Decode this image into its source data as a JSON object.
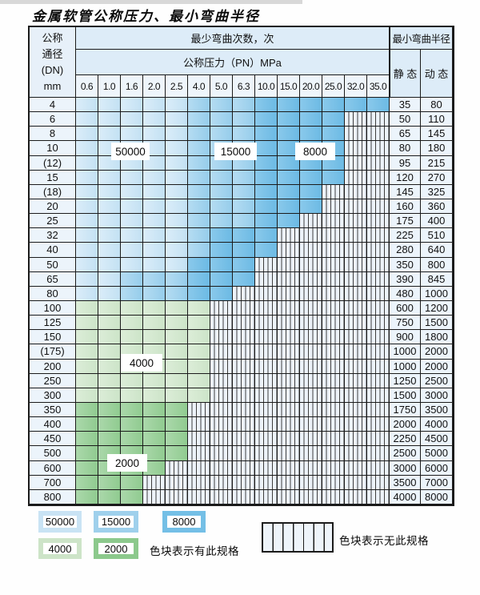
{
  "page": {
    "title": "金属软管公称压力、最小弯曲半径"
  },
  "table": {
    "dn_header_lines": [
      "公称",
      "通径",
      "(DN)",
      "mm"
    ],
    "bend_header": "最少弯曲次数，次",
    "pn_header": "公称压力（PN）MPa",
    "radius_header": "最小弯曲半径",
    "static_header": "静 态",
    "dynamic_header": "动 态",
    "pressure_columns": [
      "0.6",
      "1.0",
      "1.6",
      "2.0",
      "2.5",
      "4.0",
      "5.0",
      "6.3",
      "10.0",
      "15.0",
      "20.0",
      "25.0",
      "32.0",
      "35.0"
    ],
    "zone_codes": {
      "50": "50000 次",
      "15": "15000 次",
      "8": "8000 次",
      "4": "4000 次",
      "2": "2000 次",
      "x": "无此规格"
    },
    "rows": [
      {
        "dn": "4",
        "cells": [
          "50",
          "50",
          "50",
          "50",
          "50",
          "15",
          "15",
          "15",
          "8",
          "8",
          "8",
          "8",
          "8",
          "8"
        ],
        "static": "35",
        "dynamic": "80"
      },
      {
        "dn": "6",
        "cells": [
          "50",
          "50",
          "50",
          "50",
          "50",
          "15",
          "15",
          "15",
          "8",
          "8",
          "8",
          "8",
          "x",
          "x"
        ],
        "static": "50",
        "dynamic": "110"
      },
      {
        "dn": "8",
        "cells": [
          "50",
          "50",
          "50",
          "50",
          "50",
          "15",
          "15",
          "15",
          "8",
          "8",
          "8",
          "8",
          "x",
          "x"
        ],
        "static": "65",
        "dynamic": "145"
      },
      {
        "dn": "10",
        "cells": [
          "50",
          "50",
          "50",
          "50",
          "50",
          "15",
          "15",
          "15",
          "8",
          "8",
          "8",
          "8",
          "x",
          "x"
        ],
        "static": "80",
        "dynamic": "180"
      },
      {
        "dn": "(12)",
        "cells": [
          "50",
          "50",
          "50",
          "50",
          "50",
          "15",
          "15",
          "15",
          "8",
          "8",
          "8",
          "8",
          "x",
          "x"
        ],
        "static": "95",
        "dynamic": "215"
      },
      {
        "dn": "15",
        "cells": [
          "50",
          "50",
          "50",
          "50",
          "50",
          "15",
          "15",
          "15",
          "8",
          "8",
          "8",
          "8",
          "x",
          "x"
        ],
        "static": "120",
        "dynamic": "270"
      },
      {
        "dn": "(18)",
        "cells": [
          "50",
          "50",
          "50",
          "50",
          "50",
          "15",
          "15",
          "15",
          "8",
          "8",
          "8",
          "x",
          "x",
          "x"
        ],
        "static": "145",
        "dynamic": "325"
      },
      {
        "dn": "20",
        "cells": [
          "50",
          "50",
          "50",
          "50",
          "50",
          "15",
          "15",
          "15",
          "8",
          "8",
          "8",
          "x",
          "x",
          "x"
        ],
        "static": "160",
        "dynamic": "360"
      },
      {
        "dn": "25",
        "cells": [
          "50",
          "50",
          "50",
          "50",
          "50",
          "15",
          "15",
          "15",
          "8",
          "8",
          "x",
          "x",
          "x",
          "x"
        ],
        "static": "175",
        "dynamic": "400"
      },
      {
        "dn": "32",
        "cells": [
          "50",
          "50",
          "50",
          "50",
          "50",
          "15",
          "8",
          "8",
          "8",
          "x",
          "x",
          "x",
          "x",
          "x"
        ],
        "static": "225",
        "dynamic": "510"
      },
      {
        "dn": "40",
        "cells": [
          "50",
          "50",
          "50",
          "50",
          "50",
          "15",
          "8",
          "8",
          "8",
          "x",
          "x",
          "x",
          "x",
          "x"
        ],
        "static": "280",
        "dynamic": "640"
      },
      {
        "dn": "50",
        "cells": [
          "50",
          "50",
          "50",
          "50",
          "50",
          "8",
          "8",
          "8",
          "x",
          "x",
          "x",
          "x",
          "x",
          "x"
        ],
        "static": "350",
        "dynamic": "800"
      },
      {
        "dn": "65",
        "cells": [
          "50",
          "50",
          "15",
          "15",
          "15",
          "8",
          "8",
          "8",
          "x",
          "x",
          "x",
          "x",
          "x",
          "x"
        ],
        "static": "390",
        "dynamic": "845"
      },
      {
        "dn": "80",
        "cells": [
          "50",
          "50",
          "15",
          "15",
          "15",
          "8",
          "8",
          "x",
          "x",
          "x",
          "x",
          "x",
          "x",
          "x"
        ],
        "static": "480",
        "dynamic": "1000"
      },
      {
        "dn": "100",
        "cells": [
          "4",
          "4",
          "4",
          "4",
          "4",
          "4",
          "x",
          "x",
          "x",
          "x",
          "x",
          "x",
          "x",
          "x"
        ],
        "static": "600",
        "dynamic": "1200"
      },
      {
        "dn": "125",
        "cells": [
          "4",
          "4",
          "4",
          "4",
          "4",
          "4",
          "x",
          "x",
          "x",
          "x",
          "x",
          "x",
          "x",
          "x"
        ],
        "static": "750",
        "dynamic": "1500"
      },
      {
        "dn": "150",
        "cells": [
          "4",
          "4",
          "4",
          "4",
          "4",
          "4",
          "x",
          "x",
          "x",
          "x",
          "x",
          "x",
          "x",
          "x"
        ],
        "static": "900",
        "dynamic": "1800"
      },
      {
        "dn": "(175)",
        "cells": [
          "4",
          "4",
          "4",
          "4",
          "4",
          "4",
          "x",
          "x",
          "x",
          "x",
          "x",
          "x",
          "x",
          "x"
        ],
        "static": "1000",
        "dynamic": "2000"
      },
      {
        "dn": "200",
        "cells": [
          "4",
          "4",
          "4",
          "4",
          "4",
          "4",
          "x",
          "x",
          "x",
          "x",
          "x",
          "x",
          "x",
          "x"
        ],
        "static": "1000",
        "dynamic": "2000"
      },
      {
        "dn": "250",
        "cells": [
          "4",
          "4",
          "4",
          "4",
          "4",
          "4",
          "x",
          "x",
          "x",
          "x",
          "x",
          "x",
          "x",
          "x"
        ],
        "static": "1250",
        "dynamic": "2500"
      },
      {
        "dn": "300",
        "cells": [
          "4",
          "4",
          "4",
          "4",
          "4",
          "4",
          "x",
          "x",
          "x",
          "x",
          "x",
          "x",
          "x",
          "x"
        ],
        "static": "1500",
        "dynamic": "3000"
      },
      {
        "dn": "350",
        "cells": [
          "2",
          "2",
          "2",
          "2",
          "2",
          "x",
          "x",
          "x",
          "x",
          "x",
          "x",
          "x",
          "x",
          "x"
        ],
        "static": "1750",
        "dynamic": "3500"
      },
      {
        "dn": "400",
        "cells": [
          "2",
          "2",
          "2",
          "2",
          "2",
          "x",
          "x",
          "x",
          "x",
          "x",
          "x",
          "x",
          "x",
          "x"
        ],
        "static": "2000",
        "dynamic": "4000"
      },
      {
        "dn": "450",
        "cells": [
          "2",
          "2",
          "2",
          "2",
          "2",
          "x",
          "x",
          "x",
          "x",
          "x",
          "x",
          "x",
          "x",
          "x"
        ],
        "static": "2250",
        "dynamic": "4500"
      },
      {
        "dn": "500",
        "cells": [
          "2",
          "2",
          "2",
          "2",
          "2",
          "x",
          "x",
          "x",
          "x",
          "x",
          "x",
          "x",
          "x",
          "x"
        ],
        "static": "2500",
        "dynamic": "5000"
      },
      {
        "dn": "600",
        "cells": [
          "2",
          "2",
          "2",
          "2",
          "x",
          "x",
          "x",
          "x",
          "x",
          "x",
          "x",
          "x",
          "x",
          "x"
        ],
        "static": "3000",
        "dynamic": "6000"
      },
      {
        "dn": "700",
        "cells": [
          "2",
          "2",
          "2",
          "x",
          "x",
          "x",
          "x",
          "x",
          "x",
          "x",
          "x",
          "x",
          "x",
          "x"
        ],
        "static": "3500",
        "dynamic": "7000"
      },
      {
        "dn": "800",
        "cells": [
          "2",
          "2",
          "2",
          "x",
          "x",
          "x",
          "x",
          "x",
          "x",
          "x",
          "x",
          "x",
          "x",
          "x"
        ],
        "static": "4000",
        "dynamic": "8000"
      }
    ]
  },
  "zone_labels": [
    {
      "text": "50000"
    },
    {
      "text": "15000"
    },
    {
      "text": "8000"
    },
    {
      "text": "4000"
    },
    {
      "text": "2000"
    }
  ],
  "legend": {
    "swatches": [
      {
        "label": "50000",
        "color": "#c9e3f4"
      },
      {
        "label": "15000",
        "color": "#9fd0ec"
      },
      {
        "label": "8000",
        "color": "#74bfe6"
      },
      {
        "label": "4000",
        "color": "#cde4c8"
      },
      {
        "label": "2000",
        "color": "#8cc98c"
      }
    ],
    "has_spec_text": "色块表示有此规格",
    "no_spec_text": "色块表示无此规格"
  },
  "colors": {
    "zone_50000": "#c9e3f4",
    "zone_15000": "#9fd0ec",
    "zone_8000": "#74bfe6",
    "zone_4000": "#cde4c8",
    "zone_2000": "#8cc98c",
    "hatch_fill": "#edf3fa",
    "header_fill": "#ddecf8",
    "grid_line": "#1b1b1b"
  }
}
